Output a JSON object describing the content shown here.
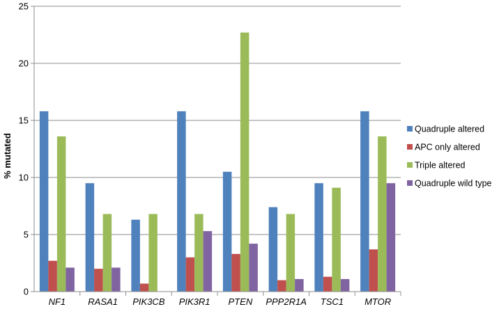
{
  "chart_data": {
    "type": "bar",
    "title": "",
    "xlabel": "",
    "ylabel": "% mutated",
    "ylim": [
      0,
      25
    ],
    "yticks": [
      "0",
      "5",
      "10",
      "15",
      "20",
      "25"
    ],
    "grid": true,
    "legend_position": "right",
    "categories": [
      "NF1",
      "RASA1",
      "PIK3CB",
      "PIK3R1",
      "PTEN",
      "PPP2R1A",
      "TSC1",
      "MTOR"
    ],
    "series": [
      {
        "name": "Quadruple altered",
        "color": "#4F81BD",
        "values": [
          15.8,
          9.5,
          6.3,
          15.8,
          10.5,
          7.4,
          9.5,
          15.8
        ]
      },
      {
        "name": "APC only altered",
        "color": "#C0504D",
        "values": [
          2.7,
          2.0,
          0.7,
          3.0,
          3.3,
          1.0,
          1.3,
          3.7
        ]
      },
      {
        "name": "Triple altered",
        "color": "#9BBB59",
        "values": [
          13.6,
          6.8,
          6.8,
          6.8,
          22.7,
          6.8,
          9.1,
          13.6
        ]
      },
      {
        "name": "Quadruple wild type",
        "color": "#8064A2",
        "values": [
          2.1,
          2.1,
          0.0,
          5.3,
          4.2,
          1.1,
          1.1,
          9.5
        ]
      }
    ]
  }
}
